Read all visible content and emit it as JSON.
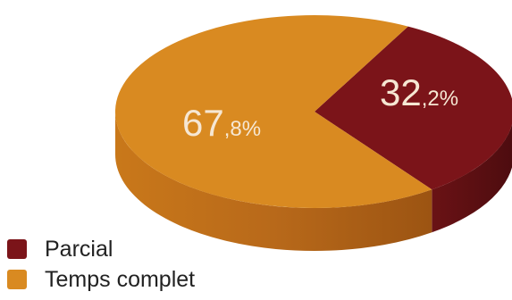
{
  "chart_data": {
    "type": "pie",
    "title": "",
    "categories": [
      "Parcial",
      "Temps complet"
    ],
    "values": [
      32.2,
      67.8
    ],
    "value_labels": [
      {
        "int": "32",
        "dec": ",2%"
      },
      {
        "int": "67",
        "dec": ",8%"
      }
    ],
    "colors": [
      "#7b1419",
      "#d98a21"
    ],
    "side_colors": [
      "#5e0f12",
      "#b26714"
    ],
    "style": "3d",
    "legend_position": "bottom-left"
  }
}
